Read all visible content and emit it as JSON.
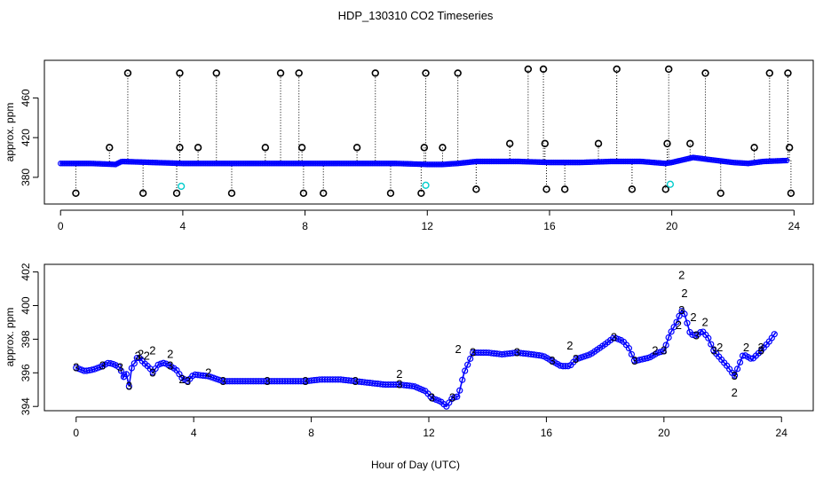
{
  "title": "HDP_130310  CO2 Timeseries",
  "xlabel": "Hour of Day (UTC)",
  "colors": {
    "outlier": "#000000",
    "baseline": "#0000ff",
    "flag2": "#00cc00",
    "cyan": "#00cccc",
    "axis": "#000000"
  },
  "chart_data": [
    {
      "type": "scatter",
      "panel": "top",
      "ylabel": "approx. ppm",
      "xlim": [
        -0.5,
        24.6
      ],
      "ylim": [
        354,
        497
      ],
      "x_ticks": [
        0,
        4,
        8,
        12,
        16,
        20,
        24
      ],
      "y_ticks": [
        380,
        420,
        460
      ],
      "grid": false,
      "baseline": {
        "x": [
          0.0,
          1.0,
          1.8,
          2.0,
          3.0,
          4.0,
          5.0,
          6.0,
          7.0,
          8.0,
          9.0,
          10.0,
          11.0,
          12.0,
          12.5,
          13.0,
          13.6,
          14.5,
          15.0,
          16.0,
          17.0,
          18.0,
          19.0,
          19.8,
          20.0,
          20.7,
          21.2,
          22.0,
          22.5,
          23.0,
          23.8
        ],
        "y": [
          394,
          394,
          393,
          396,
          395,
          394,
          394,
          394,
          394,
          394,
          394,
          394,
          394,
          393,
          393,
          394,
          396,
          396,
          396,
          395,
          395,
          396,
          396,
          394,
          395,
          400,
          398,
          395,
          394,
          396,
          397
        ]
      },
      "spikes": {
        "x": [
          0.5,
          1.6,
          2.2,
          2.7,
          3.8,
          3.9,
          3.9,
          4.5,
          5.1,
          5.6,
          6.7,
          7.2,
          7.8,
          7.9,
          7.95,
          8.6,
          9.7,
          10.3,
          10.8,
          11.8,
          11.9,
          11.95,
          12.5,
          13.0,
          13.6,
          14.7,
          15.3,
          15.8,
          15.85,
          15.9,
          16.5,
          17.6,
          18.2,
          18.7,
          19.8,
          19.85,
          19.9,
          20.6,
          21.1,
          21.6,
          22.7,
          23.2,
          23.8,
          23.85,
          23.9
        ],
        "y": [
          364,
          410,
          485,
          364,
          364,
          410,
          485,
          410,
          485,
          364,
          410,
          485,
          485,
          410,
          364,
          364,
          410,
          485,
          364,
          364,
          410,
          485,
          410,
          485,
          368,
          414,
          489,
          489,
          414,
          368,
          368,
          414,
          489,
          368,
          368,
          414,
          489,
          414,
          485,
          364,
          410,
          485,
          485,
          410,
          364
        ]
      },
      "cyan_points": {
        "x": [
          3.95,
          11.95,
          19.95
        ],
        "y": [
          371,
          372,
          373
        ]
      }
    },
    {
      "type": "line",
      "panel": "bottom",
      "ylabel": "approx. ppm",
      "xlim": [
        -1.05,
        25.05
      ],
      "ylim": [
        393.8,
        402.4
      ],
      "x_ticks": [
        0,
        4,
        8,
        12,
        16,
        20,
        24
      ],
      "y_ticks": [
        394,
        396,
        398,
        400,
        402
      ],
      "grid": false,
      "marker_label": "3",
      "flag_label": "2",
      "series_flag3": {
        "x": [
          0.0,
          0.3,
          0.6,
          0.9,
          1.1,
          1.3,
          1.5,
          1.6,
          1.7,
          1.8,
          1.9,
          2.0,
          2.1,
          2.3,
          2.5,
          2.6,
          2.8,
          3.0,
          3.2,
          3.4,
          3.6,
          3.8,
          4.0,
          4.5,
          5.0,
          5.5,
          6.0,
          6.5,
          7.0,
          7.5,
          7.8,
          8.3,
          9.0,
          9.5,
          10.0,
          10.5,
          11.0,
          11.5,
          11.9,
          12.1,
          12.4,
          12.6,
          12.8,
          13.0,
          13.2,
          13.5,
          14.0,
          14.5,
          15.0,
          15.5,
          15.9,
          16.2,
          16.5,
          16.8,
          17.0,
          17.5,
          18.0,
          18.3,
          18.6,
          18.8,
          19.0,
          19.5,
          19.8,
          20.0,
          20.2,
          20.4,
          20.6,
          20.7,
          20.9,
          21.1,
          21.3,
          21.5,
          21.7,
          22.0,
          22.2,
          22.4,
          22.7,
          23.0,
          23.3,
          23.6,
          23.8
        ],
        "y": [
          396.3,
          396.1,
          396.2,
          396.4,
          396.6,
          396.5,
          396.3,
          395.7,
          396.0,
          395.2,
          396.4,
          396.6,
          397.0,
          396.6,
          396.3,
          396.0,
          396.5,
          396.6,
          396.4,
          396.2,
          395.7,
          395.5,
          395.9,
          395.8,
          395.5,
          395.5,
          395.5,
          395.5,
          395.5,
          395.5,
          395.5,
          395.6,
          395.6,
          395.5,
          395.4,
          395.3,
          395.3,
          395.2,
          394.9,
          394.5,
          394.3,
          394.0,
          394.5,
          394.6,
          396.0,
          397.2,
          397.2,
          397.1,
          397.2,
          397.1,
          397.0,
          396.7,
          396.4,
          396.4,
          396.8,
          397.1,
          397.7,
          398.1,
          397.9,
          397.5,
          396.7,
          396.9,
          397.2,
          397.3,
          398.3,
          398.9,
          399.7,
          399.5,
          398.3,
          398.2,
          398.5,
          398.1,
          397.3,
          396.7,
          396.3,
          395.8,
          397.1,
          396.8,
          397.3,
          397.9,
          398.4
        ]
      },
      "series_flag2": {
        "x": [
          2.2,
          2.4,
          2.6,
          3.2,
          3.6,
          4.5,
          11.0,
          13.0,
          16.8,
          19.7,
          20.5,
          20.6,
          20.7,
          21.0,
          21.4,
          21.9,
          22.4,
          22.8,
          23.3
        ],
        "y": [
          397.1,
          397.0,
          397.3,
          397.1,
          395.6,
          396.0,
          395.9,
          397.4,
          397.6,
          397.3,
          398.8,
          401.8,
          400.7,
          399.3,
          399.0,
          397.5,
          394.8,
          397.5,
          397.5
        ]
      }
    }
  ]
}
